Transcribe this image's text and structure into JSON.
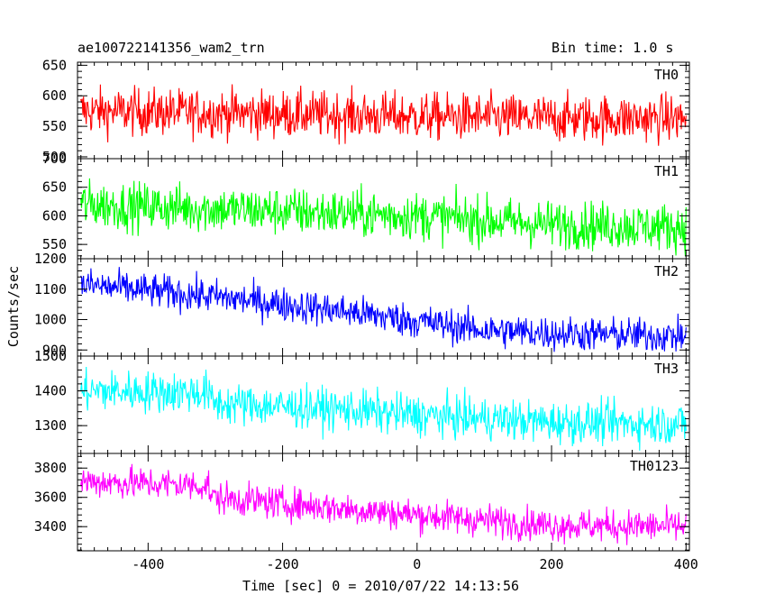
{
  "chart_data": {
    "type": "line",
    "title_left": "ae100722141356_wam2_trn",
    "title_right": "Bin time: 1.0 s",
    "xlabel": "Time [sec] 0 = 2010/07/22 14:13:56",
    "ylabel": "Counts/sec",
    "xlim": [
      -505,
      405
    ],
    "x_ticks": [
      -400,
      -200,
      0,
      200,
      400
    ],
    "bin_time_s": 1.0,
    "panels": [
      {
        "name": "TH0",
        "color": "#ff0000",
        "ylim": [
          497,
          655
        ],
        "y_ticks": [
          500,
          550,
          600,
          650
        ],
        "trend": [
          [
            -500,
            575
          ],
          [
            -300,
            572
          ],
          [
            0,
            566
          ],
          [
            200,
            563
          ],
          [
            400,
            563
          ]
        ],
        "noise_amplitude": 26
      },
      {
        "name": "TH1",
        "color": "#00ff00",
        "ylim": [
          525,
          700
        ],
        "y_ticks": [
          550,
          600,
          650,
          700
        ],
        "trend": [
          [
            -500,
            620
          ],
          [
            -300,
            612
          ],
          [
            0,
            600
          ],
          [
            100,
            592
          ],
          [
            200,
            585
          ],
          [
            400,
            580
          ]
        ],
        "noise_amplitude": 28
      },
      {
        "name": "TH2",
        "color": "#0000ff",
        "ylim": [
          880,
          1200
        ],
        "y_ticks": [
          900,
          1000,
          1100,
          1200
        ],
        "trend": [
          [
            -500,
            1115
          ],
          [
            -300,
            1075
          ],
          [
            -100,
            1025
          ],
          [
            0,
            995
          ],
          [
            100,
            965
          ],
          [
            200,
            955
          ],
          [
            400,
            945
          ]
        ],
        "noise_amplitude": 38
      },
      {
        "name": "TH3",
        "color": "#00ffff",
        "ylim": [
          1220,
          1500
        ],
        "y_ticks": [
          1300,
          1400,
          1500
        ],
        "trend": [
          [
            -500,
            1400
          ],
          [
            -310,
            1395
          ],
          [
            -305,
            1365
          ],
          [
            -100,
            1345
          ],
          [
            0,
            1330
          ],
          [
            200,
            1310
          ],
          [
            400,
            1305
          ]
        ],
        "noise_amplitude": 40
      },
      {
        "name": "TH0123",
        "color": "#ff00ff",
        "ylim": [
          3235,
          3900
        ],
        "y_ticks": [
          3400,
          3600,
          3800
        ],
        "trend": [
          [
            -500,
            3710
          ],
          [
            -310,
            3680
          ],
          [
            -305,
            3600
          ],
          [
            -100,
            3520
          ],
          [
            0,
            3480
          ],
          [
            200,
            3410
          ],
          [
            400,
            3400
          ]
        ],
        "noise_amplitude": 75
      }
    ]
  }
}
